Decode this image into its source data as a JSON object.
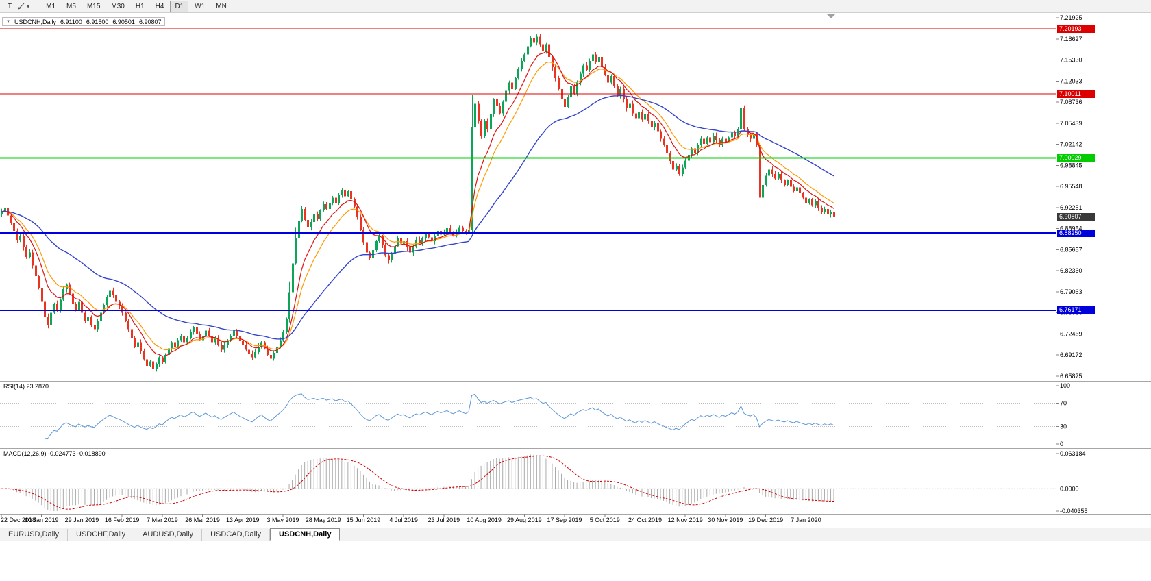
{
  "toolbar": {
    "t_button": "T",
    "timeframes": [
      "M1",
      "M5",
      "M15",
      "M30",
      "H1",
      "H4",
      "D1",
      "W1",
      "MN"
    ],
    "active_timeframe": "D1"
  },
  "chart": {
    "symbol": "USDCNH,Daily",
    "open": "6.91100",
    "high": "6.91500",
    "low": "6.90501",
    "close": "6.90807"
  },
  "indicators": {
    "rsi": {
      "display": "RSI(14) 23.2870",
      "name": "RSI",
      "period": 14,
      "value": "23.2870",
      "scale_labels": [
        "100",
        "70",
        "30",
        "0"
      ],
      "levels": [
        70,
        30
      ]
    },
    "macd": {
      "display": "MACD(12,26,9) -0.024773 -0.018890",
      "name": "MACD",
      "params": "12,26,9",
      "macd_value": "-0.024773",
      "signal_value": "-0.018890",
      "scale_labels": [
        "0.063184",
        "0.0000",
        "-0.040355"
      ],
      "scale_max": 0.063184,
      "scale_min": -0.040355
    }
  },
  "tabs": {
    "items": [
      {
        "label": "EURUSD,Daily",
        "active": false
      },
      {
        "label": "USDCHF,Daily",
        "active": false
      },
      {
        "label": "AUDUSD,Daily",
        "active": false
      },
      {
        "label": "USDCAD,Daily",
        "active": false
      },
      {
        "label": "USDCNH,Daily",
        "active": true
      }
    ]
  },
  "chart_data": {
    "type": "candlestick",
    "symbol": "USDCNH",
    "timeframe": "Daily",
    "y_axis": {
      "ticks": [
        "7.21925",
        "7.18627",
        "7.15330",
        "7.12033",
        "7.08736",
        "7.05439",
        "7.02142",
        "6.98845",
        "6.95548",
        "6.92251",
        "6.88954",
        "6.85657",
        "6.82360",
        "6.79063",
        "6.75766",
        "6.72469",
        "6.69172",
        "6.65875"
      ],
      "top_value": 7.21925,
      "bottom_value": 6.65875
    },
    "x_axis": {
      "labels": [
        "22 Dec 2018",
        "10 Jan 2019",
        "29 Jan 2019",
        "16 Feb 2019",
        "7 Mar 2019",
        "26 Mar 2019",
        "13 Apr 2019",
        "3 May 2019",
        "28 May 2019",
        "15 Jun 2019",
        "4 Jul 2019",
        "23 Jul 2019",
        "10 Aug 2019",
        "29 Aug 2019",
        "17 Sep 2019",
        "5 Oct 2019",
        "24 Oct 2019",
        "12 Nov 2019",
        "30 Nov 2019",
        "19 Dec 2019",
        "7 Jan 2020"
      ],
      "candles_per_label": 13
    },
    "first_open": 6.912,
    "closes": [
      6.916,
      6.922,
      6.91,
      6.899,
      6.886,
      6.872,
      6.878,
      6.86,
      6.845,
      6.852,
      6.832,
      6.815,
      6.796,
      6.775,
      6.752,
      6.738,
      6.758,
      6.772,
      6.762,
      6.778,
      6.795,
      6.802,
      6.788,
      6.772,
      6.762,
      6.775,
      6.758,
      6.745,
      6.752,
      6.738,
      6.732,
      6.745,
      6.758,
      6.77,
      6.782,
      6.792,
      6.785,
      6.775,
      6.768,
      6.758,
      6.745,
      6.732,
      6.718,
      6.705,
      6.712,
      6.698,
      6.685,
      6.675,
      6.682,
      6.67,
      6.678,
      6.688,
      6.68,
      6.692,
      6.702,
      6.712,
      6.705,
      6.715,
      6.722,
      6.712,
      6.718,
      6.728,
      6.735,
      6.725,
      6.715,
      6.722,
      6.73,
      6.722,
      6.712,
      6.718,
      6.708,
      6.7,
      6.708,
      6.715,
      6.722,
      6.73,
      6.722,
      6.714,
      6.708,
      6.7,
      6.694,
      6.688,
      6.696,
      6.705,
      6.712,
      6.702,
      6.692,
      6.686,
      6.695,
      6.705,
      6.715,
      6.728,
      6.748,
      6.79,
      6.835,
      6.875,
      6.902,
      6.92,
      6.903,
      6.892,
      6.9,
      6.912,
      6.905,
      6.918,
      6.928,
      6.92,
      6.93,
      6.938,
      6.93,
      6.942,
      6.95,
      6.94,
      6.948,
      6.936,
      6.924,
      6.908,
      6.888,
      6.868,
      6.852,
      6.844,
      6.856,
      6.87,
      6.878,
      6.864,
      6.848,
      6.84,
      6.85,
      6.862,
      6.874,
      6.866,
      6.87,
      6.86,
      6.852,
      6.862,
      6.872,
      6.866,
      6.874,
      6.882,
      6.876,
      6.87,
      6.878,
      6.886,
      6.88,
      6.885,
      6.89,
      6.884,
      6.879,
      6.885,
      6.891,
      6.886,
      6.882,
      6.888,
      7.048,
      7.085,
      7.058,
      7.035,
      7.058,
      7.045,
      7.068,
      7.092,
      7.082,
      7.07,
      7.088,
      7.105,
      7.118,
      7.108,
      7.125,
      7.14,
      7.152,
      7.162,
      7.175,
      7.188,
      7.18,
      7.19,
      7.178,
      7.168,
      7.178,
      7.158,
      7.142,
      7.125,
      7.108,
      7.092,
      7.08,
      7.095,
      7.112,
      7.1,
      7.118,
      7.132,
      7.145,
      7.138,
      7.152,
      7.162,
      7.15,
      7.158,
      7.142,
      7.13,
      7.118,
      7.128,
      7.112,
      7.098,
      7.108,
      7.092,
      7.078,
      7.085,
      7.07,
      7.062,
      7.072,
      7.06,
      7.068,
      7.058,
      7.048,
      7.055,
      7.042,
      7.03,
      7.02,
      7.008,
      6.995,
      6.982,
      6.988,
      6.975,
      6.985,
      6.996,
      7.005,
      7.015,
      7.008,
      7.02,
      7.03,
      7.022,
      7.032,
      7.025,
      7.035,
      7.028,
      7.02,
      7.03,
      7.025,
      7.032,
      7.04,
      7.035,
      7.045,
      7.078,
      7.045,
      7.036,
      7.03,
      7.038,
      7.02,
      6.938,
      6.958,
      6.972,
      6.982,
      6.975,
      6.968,
      6.975,
      6.965,
      6.958,
      6.965,
      6.955,
      6.948,
      6.954,
      6.945,
      6.938,
      6.93,
      6.935,
      6.926,
      6.932,
      6.922,
      6.915,
      6.92,
      6.912,
      6.916,
      6.9081
    ],
    "levels": [
      {
        "price": 7.20193,
        "label": "7.20193",
        "color": "#dd0000",
        "width": 1
      },
      {
        "price": 7.10011,
        "label": "7.10011",
        "color": "#dd0000",
        "width": 1
      },
      {
        "price": 7.00029,
        "label": "7.00029",
        "color": "#00cc00",
        "width": 2
      },
      {
        "price": 6.8825,
        "label": "6.88250",
        "color": "#0000dd",
        "width": 2
      },
      {
        "price": 6.76171,
        "label": "6.76171",
        "color": "#0000dd",
        "width": 2
      }
    ],
    "current_price": {
      "value": 6.90807,
      "label": "6.90807",
      "line_color": "#b5b5b5",
      "label_bg": "#3a3a3a"
    },
    "moving_averages": [
      {
        "name": "medium-ma",
        "period": 14,
        "color": "#ff9900",
        "width": 1.2
      },
      {
        "name": "fast-ma",
        "period": 9,
        "color": "#e01010",
        "width": 1.2
      },
      {
        "name": "slow-ma",
        "period": 45,
        "color": "#3344cc",
        "width": 1.4
      }
    ],
    "colors": {
      "up": "#0fa558",
      "down": "#ea3423",
      "rsi_line": "#5e97d8",
      "macd_histogram": "#aaaaaa",
      "macd_signal": "#d40000"
    }
  }
}
